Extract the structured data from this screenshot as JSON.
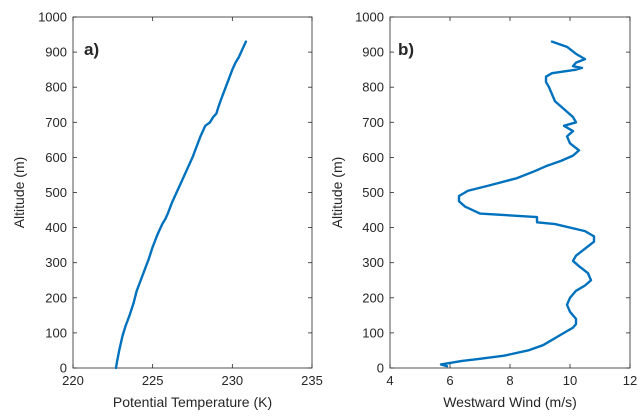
{
  "chart_data": [
    {
      "type": "line",
      "panel_label": "a)",
      "xlabel": "Potential Temperature (K)",
      "ylabel": "Altitude (m)",
      "xlim": [
        220,
        235
      ],
      "ylim": [
        0,
        1000
      ],
      "xticks": [
        220,
        225,
        230,
        235
      ],
      "yticks": [
        0,
        100,
        200,
        300,
        400,
        500,
        600,
        700,
        800,
        900,
        1000
      ],
      "grid": false,
      "line_color": "#0072BD",
      "series": [
        {
          "x": [
            222.7,
            222.75,
            222.9,
            223.1,
            223.3,
            223.55,
            223.8,
            224.0,
            224.25,
            224.5,
            224.75,
            225.0,
            225.3,
            225.6,
            225.8,
            225.95,
            226.2,
            226.5,
            226.8,
            227.15,
            227.5,
            227.75,
            228.0,
            228.3,
            228.6,
            228.8,
            229.0,
            229.1,
            229.25,
            229.5,
            229.75,
            230.0,
            230.2,
            230.4,
            230.55,
            230.85
          ],
          "y": [
            0,
            15,
            50,
            90,
            120,
            150,
            185,
            220,
            250,
            280,
            310,
            345,
            380,
            410,
            425,
            440,
            470,
            500,
            530,
            565,
            600,
            630,
            660,
            690,
            700,
            715,
            725,
            740,
            760,
            790,
            820,
            850,
            870,
            885,
            900,
            930
          ]
        }
      ]
    },
    {
      "type": "line",
      "panel_label": "b)",
      "xlabel": "Westward Wind (m/s)",
      "ylabel": "Altitude (m)",
      "xlim": [
        4,
        12
      ],
      "ylim": [
        0,
        1000
      ],
      "xticks": [
        4,
        6,
        8,
        10,
        12
      ],
      "yticks": [
        0,
        100,
        200,
        300,
        400,
        500,
        600,
        700,
        800,
        900,
        1000
      ],
      "grid": false,
      "line_color": "#0072BD",
      "series": [
        {
          "x": [
            5.9,
            5.7,
            6.4,
            6.9,
            7.8,
            8.6,
            9.1,
            9.4,
            9.7,
            9.9,
            10.1,
            10.2,
            10.2,
            10.0,
            9.9,
            10.0,
            10.2,
            10.5,
            10.7,
            10.6,
            10.3,
            10.1,
            10.2,
            10.5,
            10.8,
            10.8,
            10.5,
            9.5,
            8.9,
            8.9,
            7.0,
            6.5,
            6.3,
            6.3,
            6.6,
            7.3,
            8.2,
            8.8,
            9.2,
            9.7,
            10.1,
            10.3,
            10.0,
            9.9,
            10.1,
            9.8,
            10.2,
            10.1,
            9.9,
            9.5,
            9.4,
            9.3,
            9.2,
            9.2,
            9.4,
            9.8,
            10.2,
            10.4,
            10.1,
            10.2,
            10.5,
            10.2,
            9.9,
            9.4
          ],
          "y": [
            5,
            10,
            20,
            25,
            35,
            50,
            65,
            80,
            95,
            105,
            115,
            125,
            140,
            160,
            180,
            200,
            220,
            235,
            250,
            270,
            290,
            305,
            320,
            340,
            360,
            375,
            390,
            410,
            415,
            430,
            440,
            460,
            475,
            490,
            505,
            520,
            540,
            560,
            575,
            590,
            605,
            620,
            640,
            660,
            675,
            690,
            700,
            715,
            730,
            760,
            780,
            800,
            815,
            830,
            840,
            845,
            850,
            855,
            860,
            870,
            880,
            895,
            915,
            930
          ]
        }
      ]
    }
  ]
}
